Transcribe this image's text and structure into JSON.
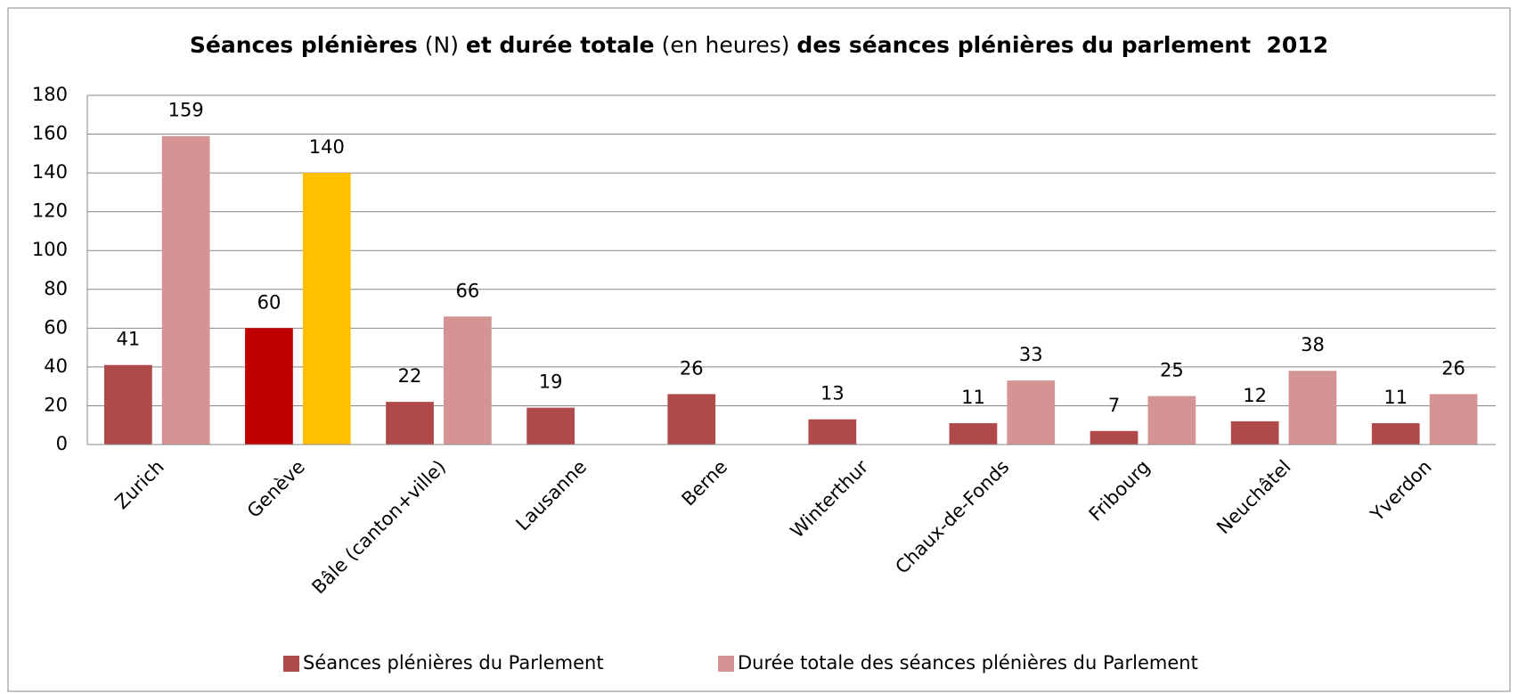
{
  "chart_data": {
    "type": "bar",
    "title_parts": [
      {
        "text": "Séances plénières",
        "bold": true
      },
      {
        "text": " (N) ",
        "bold": false
      },
      {
        "text": "et durée totale",
        "bold": true
      },
      {
        "text": " (en heures) ",
        "bold": false
      },
      {
        "text": "des séances plénières du parlement  2012",
        "bold": true
      }
    ],
    "categories": [
      "Zurich",
      "Genève",
      "Bâle (canton+ville)",
      "Lausanne",
      "Berne",
      "Winterthur",
      "Chaux-de-Fonds",
      "Fribourg",
      "Neuchâtel",
      "Yverdon"
    ],
    "series": [
      {
        "name": "Séances plénières du Parlement",
        "color": "#b0494a",
        "colors": [
          "#b0494a",
          "#c00000",
          "#b0494a",
          "#b0494a",
          "#b0494a",
          "#b0494a",
          "#b0494a",
          "#b0494a",
          "#b0494a",
          "#b0494a"
        ],
        "values": [
          41,
          60,
          22,
          19,
          26,
          13,
          11,
          7,
          12,
          11
        ]
      },
      {
        "name": "Durée totale des séances plénières du Parlement",
        "color": "#d59494",
        "colors": [
          "#d59494",
          "#ffc000",
          "#d59494",
          "#d59494",
          "#d59494",
          "#d59494",
          "#d59494",
          "#d59494",
          "#d59494",
          "#d59494"
        ],
        "values": [
          159,
          140,
          66,
          null,
          null,
          null,
          33,
          25,
          38,
          26
        ]
      }
    ],
    "ylim": [
      0,
      180
    ],
    "yticks": [
      0,
      20,
      40,
      60,
      80,
      100,
      120,
      140,
      160,
      180
    ],
    "grid": true,
    "legend": "bottom"
  }
}
